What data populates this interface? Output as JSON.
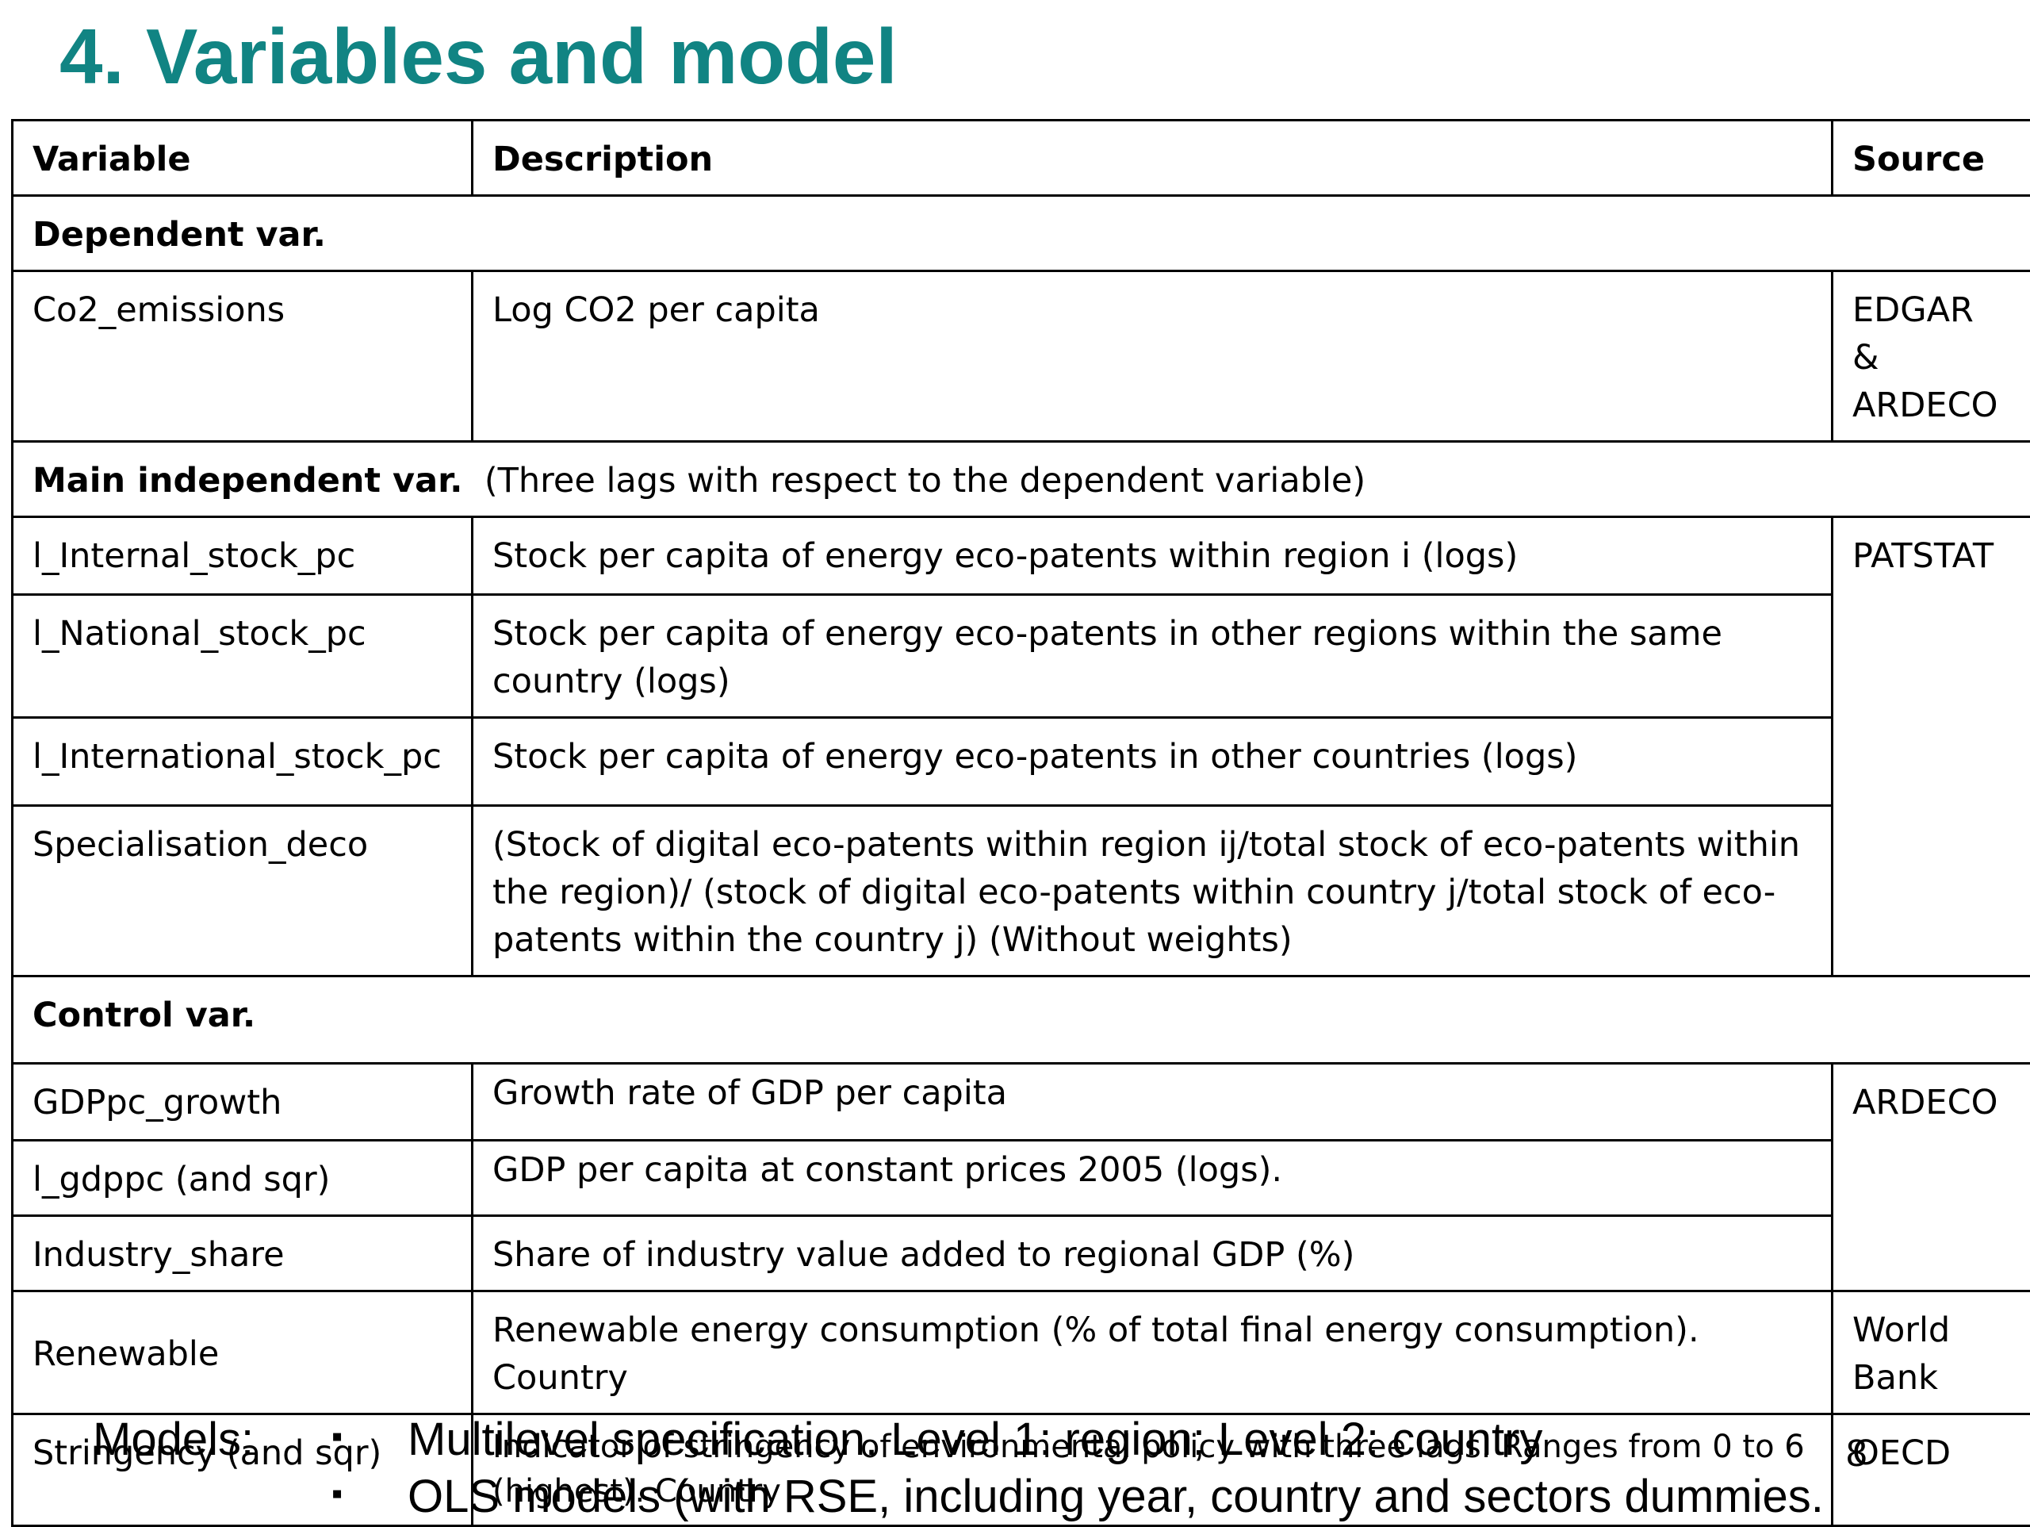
{
  "title": "4. Variables and model",
  "table": {
    "headers": [
      "Variable",
      "Description",
      "Source"
    ],
    "dependent_section": "Dependent var.",
    "co2": {
      "variable": "Co2_emissions",
      "description": "Log CO2 per capita",
      "source_line1": "EDGAR &",
      "source_line2": "ARDECO"
    },
    "main_section_bold": "Main independent var.",
    "main_section_note": "(Three lags with respect to the dependent variable)",
    "internal": {
      "variable": "l_Internal_stock_pc",
      "description": "Stock per capita of energy eco-patents within region i (logs)"
    },
    "main_source": "PATSTAT",
    "national": {
      "variable": "l_National_stock_pc",
      "description": "Stock per capita of energy eco-patents in other regions within the same country (logs)"
    },
    "international": {
      "variable": "l_International_stock_pc",
      "description": "Stock per capita of energy eco-patents in other countries (logs)"
    },
    "specialisation": {
      "variable": "Specialisation_deco",
      "description": "(Stock of digital eco-patents within region ij/total stock of eco-patents within the region)/ (stock of digital eco-patents within country j/total stock of eco-patents within the country j) (Without weights)"
    },
    "control_section": "Control var.",
    "gdp_growth": {
      "variable": "GDPpc_growth",
      "description": "Growth rate of GDP per capita"
    },
    "ardeco_source": "ARDECO",
    "gdppc": {
      "variable": "l_gdppc (and sqr)",
      "description": "GDP per capita at constant prices 2005 (logs)."
    },
    "industry": {
      "variable": "Industry_share",
      "description": "Share of industry value added to regional GDP (%)"
    },
    "renewable": {
      "variable": "Renewable",
      "description": "Renewable energy consumption   (% of total final energy consumption). Country",
      "source_line1": "World",
      "source_line2": "Bank"
    },
    "stringency": {
      "variable": "Stringency (and sqr)",
      "description": "Indicator of stringency of environmental policy with three lags. Ranges from 0 to 6 (highest). Country",
      "source": "OECD"
    }
  },
  "footer": {
    "label": "Models:",
    "bullet": "▪",
    "items": [
      "Multilevel specification. Level 1: region; Level 2: country",
      "OLS models (with RSE, including year, country and sectors dummies."
    ],
    "page_number": "8"
  }
}
